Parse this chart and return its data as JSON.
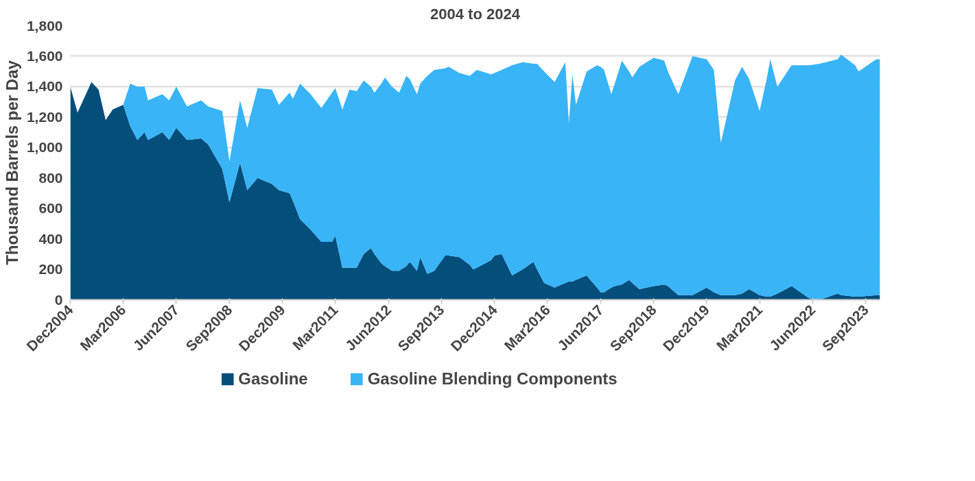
{
  "chart_data": {
    "type": "area",
    "stacked": true,
    "title": "2004 to 2024",
    "ylabel": "Thousand Barrels per Day",
    "x": [
      "2004-12",
      "2005-02",
      "2005-06",
      "2005-08",
      "2005-10",
      "2005-12",
      "2006-03",
      "2006-05",
      "2006-07",
      "2006-09",
      "2006-10",
      "2007-02",
      "2007-04",
      "2007-06",
      "2007-09",
      "2008-01",
      "2008-03",
      "2008-07",
      "2008-09",
      "2008-12",
      "2009-02",
      "2009-05",
      "2009-09",
      "2009-11",
      "2010-02",
      "2010-03",
      "2010-05",
      "2010-08",
      "2010-11",
      "2011-02",
      "2011-03",
      "2011-05",
      "2011-07",
      "2011-09",
      "2011-11",
      "2012-01",
      "2012-02",
      "2012-04",
      "2012-05",
      "2012-07",
      "2012-09",
      "2012-11",
      "2012-12",
      "2013-02",
      "2013-03",
      "2013-05",
      "2013-07",
      "2013-10",
      "2013-11",
      "2014-02",
      "2014-05",
      "2014-06",
      "2014-07",
      "2014-11",
      "2014-12",
      "2015-02",
      "2015-05",
      "2015-08",
      "2015-11",
      "2015-12",
      "2016-02",
      "2016-05",
      "2016-08",
      "2016-09",
      "2016-10",
      "2016-11",
      "2017-02",
      "2017-05",
      "2017-06",
      "2017-07",
      "2017-09",
      "2017-10",
      "2017-12",
      "2018-02",
      "2018-03",
      "2018-05",
      "2018-09",
      "2018-12",
      "2019-01",
      "2019-04",
      "2019-08",
      "2019-12",
      "2020-02",
      "2020-04",
      "2020-08",
      "2020-10",
      "2020-12",
      "2021-03",
      "2021-05",
      "2021-06",
      "2021-08",
      "2021-12",
      "2022-05",
      "2022-08",
      "2023-01",
      "2023-02",
      "2023-06",
      "2023-07",
      "2023-12",
      "2024-01"
    ],
    "series": [
      {
        "name": "Gasoline",
        "color": "#034e7b",
        "values": [
          1400,
          1230,
          1430,
          1380,
          1180,
          1250,
          1280,
          1140,
          1050,
          1100,
          1050,
          1100,
          1050,
          1130,
          1050,
          1060,
          1020,
          860,
          640,
          900,
          720,
          800,
          760,
          720,
          700,
          650,
          530,
          460,
          380,
          380,
          420,
          210,
          210,
          210,
          300,
          340,
          300,
          240,
          220,
          190,
          190,
          220,
          250,
          190,
          280,
          170,
          190,
          290,
          290,
          280,
          230,
          200,
          210,
          260,
          290,
          300,
          160,
          200,
          250,
          200,
          110,
          80,
          110,
          120,
          120,
          130,
          160,
          80,
          50,
          50,
          80,
          90,
          100,
          130,
          110,
          70,
          90,
          100,
          90,
          30,
          30,
          80,
          50,
          30,
          30,
          40,
          70,
          30,
          20,
          20,
          40,
          90,
          10,
          0,
          40,
          30,
          20,
          20,
          30,
          30
        ]
      },
      {
        "name": "Gasoline Blending Components",
        "color": "#38b4f7",
        "values": [
          0,
          0,
          0,
          0,
          0,
          0,
          0,
          280,
          350,
          300,
          260,
          250,
          260,
          270,
          220,
          250,
          250,
          380,
          270,
          410,
          410,
          590,
          620,
          560,
          660,
          670,
          890,
          890,
          880,
          980,
          970,
          1040,
          1170,
          1160,
          1140,
          1060,
          1060,
          1180,
          1240,
          1210,
          1170,
          1250,
          1200,
          1160,
          1140,
          1300,
          1320,
          1230,
          1240,
          1210,
          1240,
          1290,
          1300,
          1220,
          1200,
          1210,
          1380,
          1360,
          1300,
          1350,
          1390,
          1350,
          1450,
          1040,
          1360,
          1150,
          1340,
          1460,
          1480,
          1460,
          1270,
          1330,
          1470,
          1370,
          1350,
          1460,
          1500,
          1470,
          1410,
          1320,
          1570,
          1500,
          1460,
          1000,
          1410,
          1490,
          1380,
          1210,
          1430,
          1560,
          1360,
          1450,
          1530,
          1550,
          1540,
          1580,
          1520,
          1480,
          1550,
          1550
        ]
      }
    ],
    "xlim": [
      "2004-12",
      "2024-01"
    ],
    "xticks": [
      {
        "value": "2004-12",
        "label": "Dec2004"
      },
      {
        "value": "2006-03",
        "label": "Mar2006"
      },
      {
        "value": "2007-06",
        "label": "Jun2007"
      },
      {
        "value": "2008-09",
        "label": "Sep2008"
      },
      {
        "value": "2009-12",
        "label": "Dec2009"
      },
      {
        "value": "2011-03",
        "label": "Mar2011"
      },
      {
        "value": "2012-06",
        "label": "Jun2012"
      },
      {
        "value": "2013-09",
        "label": "Sep2013"
      },
      {
        "value": "2014-12",
        "label": "Dec2014"
      },
      {
        "value": "2016-03",
        "label": "Mar2016"
      },
      {
        "value": "2017-06",
        "label": "Jun2017"
      },
      {
        "value": "2018-09",
        "label": "Sep2018"
      },
      {
        "value": "2019-12",
        "label": "Dec2019"
      },
      {
        "value": "2021-03",
        "label": "Mar2021"
      },
      {
        "value": "2022-06",
        "label": "Jun2022"
      },
      {
        "value": "2023-09",
        "label": "Sep2023"
      }
    ],
    "ylim": [
      0,
      1800
    ],
    "yticks": [
      0,
      200,
      400,
      600,
      800,
      {
        "value": 1000,
        "label": "1,000"
      },
      {
        "value": 1200,
        "label": "1,200"
      },
      {
        "value": 1400,
        "label": "1,400"
      },
      {
        "value": 1600,
        "label": "1,600"
      },
      {
        "value": 1800,
        "label": "1,800"
      }
    ],
    "grid": "y",
    "legend": "bottom"
  }
}
